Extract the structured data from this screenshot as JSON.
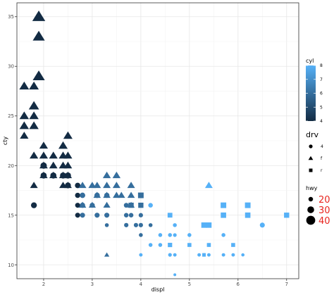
{
  "chart_data": {
    "type": "scatter",
    "title": "",
    "xlabel": "displ",
    "ylabel": "cty",
    "xlim": [
      1.45,
      7.25
    ],
    "ylim": [
      8.6,
      36.4
    ],
    "x_ticks": [
      2,
      3,
      4,
      5,
      6,
      7
    ],
    "y_ticks": [
      10,
      15,
      20,
      25,
      30,
      35
    ],
    "grid": true,
    "legend_placement": "right",
    "legends": {
      "color": {
        "title": "cyl",
        "breaks": [
          "4",
          "5",
          "6",
          "7",
          "8"
        ],
        "low_color": "#132B43",
        "high_color": "#56B1F7",
        "range": [
          4,
          8
        ]
      },
      "shape": {
        "title": "drv",
        "title_color": "#33cc33",
        "entries": [
          {
            "label": "4",
            "shape": "circle"
          },
          {
            "label": "f",
            "shape": "triangle"
          },
          {
            "label": "r",
            "shape": "square"
          }
        ]
      },
      "size": {
        "title": "hwy",
        "label_color": "#e8251f",
        "entries": [
          {
            "label": "20",
            "value": 20
          },
          {
            "label": "30",
            "value": 30
          },
          {
            "label": "40",
            "value": 40
          }
        ]
      }
    },
    "points": [
      {
        "x": 1.9,
        "y": 35,
        "cyl": 4,
        "drv": "f",
        "hwy": 44
      },
      {
        "x": 1.9,
        "y": 33,
        "cyl": 4,
        "drv": "f",
        "hwy": 41
      },
      {
        "x": 1.9,
        "y": 29,
        "cyl": 4,
        "drv": "f",
        "hwy": 41
      },
      {
        "x": 1.6,
        "y": 28,
        "cyl": 4,
        "drv": "f",
        "hwy": 33
      },
      {
        "x": 1.8,
        "y": 28,
        "cyl": 4,
        "drv": "f",
        "hwy": 33
      },
      {
        "x": 1.8,
        "y": 26,
        "cyl": 4,
        "drv": "f",
        "hwy": 35
      },
      {
        "x": 1.6,
        "y": 25,
        "cyl": 4,
        "drv": "f",
        "hwy": 32
      },
      {
        "x": 1.8,
        "y": 25,
        "cyl": 4,
        "drv": "f",
        "hwy": 32
      },
      {
        "x": 1.6,
        "y": 24,
        "cyl": 4,
        "drv": "f",
        "hwy": 32
      },
      {
        "x": 1.8,
        "y": 24,
        "cyl": 4,
        "drv": "f",
        "hwy": 32
      },
      {
        "x": 1.6,
        "y": 23,
        "cyl": 4,
        "drv": "f",
        "hwy": 29
      },
      {
        "x": 2.5,
        "y": 23,
        "cyl": 4,
        "drv": "f",
        "hwy": 31
      },
      {
        "x": 2.0,
        "y": 22,
        "cyl": 4,
        "drv": "f",
        "hwy": 29
      },
      {
        "x": 2.4,
        "y": 22,
        "cyl": 4,
        "drv": "f",
        "hwy": 31
      },
      {
        "x": 1.8,
        "y": 21,
        "cyl": 4,
        "drv": "f",
        "hwy": 29
      },
      {
        "x": 2.0,
        "y": 21,
        "cyl": 4,
        "drv": "f",
        "hwy": 29
      },
      {
        "x": 2.2,
        "y": 21,
        "cyl": 4,
        "drv": "f",
        "hwy": 29
      },
      {
        "x": 2.4,
        "y": 21,
        "cyl": 4,
        "drv": "f",
        "hwy": 29
      },
      {
        "x": 2.5,
        "y": 21,
        "cyl": 4,
        "drv": "f",
        "hwy": 29
      },
      {
        "x": 2.0,
        "y": 20,
        "cyl": 4,
        "drv": "f",
        "hwy": 28
      },
      {
        "x": 2.2,
        "y": 20,
        "cyl": 4,
        "drv": "f",
        "hwy": 28
      },
      {
        "x": 2.4,
        "y": 20,
        "cyl": 4,
        "drv": "f",
        "hwy": 28
      },
      {
        "x": 2.5,
        "y": 20,
        "cyl": 4,
        "drv": "f",
        "hwy": 28
      },
      {
        "x": 2.0,
        "y": 19,
        "cyl": 4,
        "drv": "f",
        "hwy": 27
      },
      {
        "x": 2.2,
        "y": 19,
        "cyl": 4,
        "drv": "f",
        "hwy": 27
      },
      {
        "x": 2.4,
        "y": 19,
        "cyl": 4,
        "drv": "f",
        "hwy": 27
      },
      {
        "x": 2.5,
        "y": 19,
        "cyl": 4,
        "drv": "f",
        "hwy": 27
      },
      {
        "x": 1.8,
        "y": 18,
        "cyl": 4,
        "drv": "f",
        "hwy": 26
      },
      {
        "x": 2.4,
        "y": 18,
        "cyl": 4,
        "drv": "f",
        "hwy": 26
      },
      {
        "x": 2.5,
        "y": 18,
        "cyl": 4,
        "drv": "f",
        "hwy": 26
      },
      {
        "x": 2.0,
        "y": 20,
        "cyl": 4,
        "drv": "4",
        "hwy": 28
      },
      {
        "x": 2.0,
        "y": 19,
        "cyl": 4,
        "drv": "4",
        "hwy": 27
      },
      {
        "x": 2.2,
        "y": 19,
        "cyl": 4,
        "drv": "4",
        "hwy": 27
      },
      {
        "x": 2.4,
        "y": 19,
        "cyl": 4,
        "drv": "4",
        "hwy": 27
      },
      {
        "x": 2.5,
        "y": 19,
        "cyl": 4,
        "drv": "4",
        "hwy": 27
      },
      {
        "x": 2.5,
        "y": 18,
        "cyl": 4,
        "drv": "4",
        "hwy": 26
      },
      {
        "x": 1.8,
        "y": 16,
        "cyl": 4,
        "drv": "4",
        "hwy": 26
      },
      {
        "x": 2.7,
        "y": 18,
        "cyl": 4,
        "drv": "4",
        "hwy": 24
      },
      {
        "x": 2.7,
        "y": 17,
        "cyl": 4,
        "drv": "4",
        "hwy": 23
      },
      {
        "x": 2.7,
        "y": 16,
        "cyl": 4,
        "drv": "4",
        "hwy": 22
      },
      {
        "x": 2.7,
        "y": 15,
        "cyl": 4,
        "drv": "4",
        "hwy": 22
      },
      {
        "x": 2.8,
        "y": 18,
        "cyl": 6,
        "drv": "f",
        "hwy": 26
      },
      {
        "x": 3.0,
        "y": 18,
        "cyl": 6,
        "drv": "f",
        "hwy": 26
      },
      {
        "x": 3.1,
        "y": 18,
        "cyl": 6,
        "drv": "f",
        "hwy": 26
      },
      {
        "x": 3.3,
        "y": 18,
        "cyl": 6,
        "drv": "f",
        "hwy": 26
      },
      {
        "x": 3.5,
        "y": 18,
        "cyl": 6,
        "drv": "f",
        "hwy": 26
      },
      {
        "x": 3.8,
        "y": 18,
        "cyl": 6,
        "drv": "f",
        "hwy": 26
      },
      {
        "x": 3.3,
        "y": 19,
        "cyl": 6,
        "drv": "f",
        "hwy": 27
      },
      {
        "x": 3.5,
        "y": 19,
        "cyl": 6,
        "drv": "f",
        "hwy": 27
      },
      {
        "x": 3.1,
        "y": 17,
        "cyl": 6,
        "drv": "f",
        "hwy": 25
      },
      {
        "x": 3.3,
        "y": 17,
        "cyl": 6,
        "drv": "f",
        "hwy": 25
      },
      {
        "x": 3.5,
        "y": 17,
        "cyl": 6,
        "drv": "f",
        "hwy": 25
      },
      {
        "x": 3.6,
        "y": 17,
        "cyl": 6,
        "drv": "f",
        "hwy": 25
      },
      {
        "x": 3.8,
        "y": 17,
        "cyl": 6,
        "drv": "f",
        "hwy": 25
      },
      {
        "x": 2.8,
        "y": 16,
        "cyl": 6,
        "drv": "f",
        "hwy": 25
      },
      {
        "x": 3.0,
        "y": 16,
        "cyl": 6,
        "drv": "f",
        "hwy": 24
      },
      {
        "x": 3.3,
        "y": 16,
        "cyl": 6,
        "drv": "f",
        "hwy": 24
      },
      {
        "x": 3.8,
        "y": 16,
        "cyl": 6,
        "drv": "f",
        "hwy": 24
      },
      {
        "x": 3.3,
        "y": 11,
        "cyl": 6,
        "drv": "f",
        "hwy": 17
      },
      {
        "x": 2.8,
        "y": 17,
        "cyl": 6,
        "drv": "4",
        "hwy": 24
      },
      {
        "x": 3.1,
        "y": 17,
        "cyl": 6,
        "drv": "4",
        "hwy": 24
      },
      {
        "x": 3.3,
        "y": 17,
        "cyl": 6,
        "drv": "4",
        "hwy": 23
      },
      {
        "x": 2.8,
        "y": 16,
        "cyl": 6,
        "drv": "4",
        "hwy": 23
      },
      {
        "x": 3.0,
        "y": 16,
        "cyl": 6,
        "drv": "4",
        "hwy": 22
      },
      {
        "x": 3.7,
        "y": 16,
        "cyl": 6,
        "drv": "4",
        "hwy": 21
      },
      {
        "x": 3.8,
        "y": 16,
        "cyl": 6,
        "drv": "4",
        "hwy": 21
      },
      {
        "x": 2.8,
        "y": 15,
        "cyl": 6,
        "drv": "4",
        "hwy": 22
      },
      {
        "x": 3.1,
        "y": 15,
        "cyl": 6,
        "drv": "4",
        "hwy": 22
      },
      {
        "x": 3.3,
        "y": 15,
        "cyl": 6,
        "drv": "4",
        "hwy": 22
      },
      {
        "x": 3.7,
        "y": 15,
        "cyl": 6,
        "drv": "4",
        "hwy": 20
      },
      {
        "x": 3.8,
        "y": 15,
        "cyl": 6,
        "drv": "4",
        "hwy": 20
      },
      {
        "x": 3.3,
        "y": 14,
        "cyl": 6,
        "drv": "4",
        "hwy": 17
      },
      {
        "x": 3.7,
        "y": 14,
        "cyl": 6,
        "drv": "4",
        "hwy": 19
      },
      {
        "x": 3.9,
        "y": 14,
        "cyl": 6,
        "drv": "4",
        "hwy": 19
      },
      {
        "x": 4.0,
        "y": 15,
        "cyl": 6,
        "drv": "4",
        "hwy": 19
      },
      {
        "x": 4.0,
        "y": 14,
        "cyl": 6,
        "drv": "4",
        "hwy": 19
      },
      {
        "x": 4.0,
        "y": 13,
        "cyl": 6,
        "drv": "4",
        "hwy": 17
      },
      {
        "x": 4.0,
        "y": 16,
        "cyl": 6,
        "drv": "4",
        "hwy": 21
      },
      {
        "x": 4.0,
        "y": 17,
        "cyl": 6,
        "drv": "r",
        "hwy": 26
      },
      {
        "x": 4.0,
        "y": 16,
        "cyl": 6,
        "drv": "r",
        "hwy": 24
      },
      {
        "x": 3.8,
        "y": 16,
        "cyl": 6,
        "drv": "r",
        "hwy": 24
      },
      {
        "x": 4.2,
        "y": 14,
        "cyl": 6,
        "drv": "4",
        "hwy": 17
      },
      {
        "x": 4.2,
        "y": 16,
        "cyl": 8,
        "drv": "4",
        "hwy": 20
      },
      {
        "x": 4.2,
        "y": 12,
        "cyl": 8,
        "drv": "4",
        "hwy": 17
      },
      {
        "x": 4.4,
        "y": 12,
        "cyl": 8,
        "drv": "4",
        "hwy": 17
      },
      {
        "x": 4.4,
        "y": 13,
        "cyl": 8,
        "drv": "4",
        "hwy": 17
      },
      {
        "x": 4.6,
        "y": 13,
        "cyl": 8,
        "drv": "4",
        "hwy": 17
      },
      {
        "x": 4.6,
        "y": 11,
        "cyl": 8,
        "drv": "4",
        "hwy": 16
      },
      {
        "x": 4.7,
        "y": 14,
        "cyl": 8,
        "drv": "4",
        "hwy": 17
      },
      {
        "x": 4.7,
        "y": 13,
        "cyl": 8,
        "drv": "4",
        "hwy": 16
      },
      {
        "x": 4.7,
        "y": 11,
        "cyl": 8,
        "drv": "4",
        "hwy": 15
      },
      {
        "x": 4.7,
        "y": 9,
        "cyl": 8,
        "drv": "4",
        "hwy": 12
      },
      {
        "x": 4.0,
        "y": 11,
        "cyl": 8,
        "drv": "4",
        "hwy": 15
      },
      {
        "x": 5.0,
        "y": 13,
        "cyl": 8,
        "drv": "4",
        "hwy": 17
      },
      {
        "x": 5.2,
        "y": 11,
        "cyl": 8,
        "drv": "4",
        "hwy": 15
      },
      {
        "x": 5.3,
        "y": 14,
        "cyl": 8,
        "drv": "4",
        "hwy": 19
      },
      {
        "x": 5.3,
        "y": 11,
        "cyl": 8,
        "drv": "4",
        "hwy": 15
      },
      {
        "x": 5.4,
        "y": 12,
        "cyl": 8,
        "drv": "4",
        "hwy": 16
      },
      {
        "x": 5.4,
        "y": 11,
        "cyl": 8,
        "drv": "4",
        "hwy": 15
      },
      {
        "x": 5.7,
        "y": 13,
        "cyl": 8,
        "drv": "4",
        "hwy": 17
      },
      {
        "x": 5.7,
        "y": 11,
        "cyl": 8,
        "drv": "4",
        "hwy": 15
      },
      {
        "x": 5.9,
        "y": 11,
        "cyl": 8,
        "drv": "4",
        "hwy": 15
      },
      {
        "x": 6.1,
        "y": 11,
        "cyl": 8,
        "drv": "4",
        "hwy": 14
      },
      {
        "x": 6.5,
        "y": 14,
        "cyl": 8,
        "drv": "4",
        "hwy": 22
      },
      {
        "x": 5.4,
        "y": 18,
        "cyl": 8,
        "drv": "f",
        "hwy": 26
      },
      {
        "x": 4.6,
        "y": 15,
        "cyl": 8,
        "drv": "r",
        "hwy": 22
      },
      {
        "x": 4.6,
        "y": 12,
        "cyl": 8,
        "drv": "r",
        "hwy": 20
      },
      {
        "x": 5.0,
        "y": 12,
        "cyl": 8,
        "drv": "r",
        "hwy": 18
      },
      {
        "x": 5.3,
        "y": 14,
        "cyl": 8,
        "drv": "r",
        "hwy": 25
      },
      {
        "x": 5.4,
        "y": 14,
        "cyl": 8,
        "drv": "r",
        "hwy": 25
      },
      {
        "x": 5.4,
        "y": 12,
        "cyl": 8,
        "drv": "r",
        "hwy": 18
      },
      {
        "x": 5.7,
        "y": 16,
        "cyl": 8,
        "drv": "r",
        "hwy": 26
      },
      {
        "x": 5.7,
        "y": 15,
        "cyl": 8,
        "drv": "r",
        "hwy": 25
      },
      {
        "x": 5.9,
        "y": 12,
        "cyl": 8,
        "drv": "r",
        "hwy": 18
      },
      {
        "x": 6.2,
        "y": 16,
        "cyl": 8,
        "drv": "r",
        "hwy": 26
      },
      {
        "x": 6.2,
        "y": 15,
        "cyl": 8,
        "drv": "r",
        "hwy": 25
      },
      {
        "x": 7.0,
        "y": 15,
        "cyl": 8,
        "drv": "r",
        "hwy": 24
      },
      {
        "x": 5.3,
        "y": 11,
        "cyl": 8,
        "drv": "r",
        "hwy": 16
      }
    ]
  }
}
